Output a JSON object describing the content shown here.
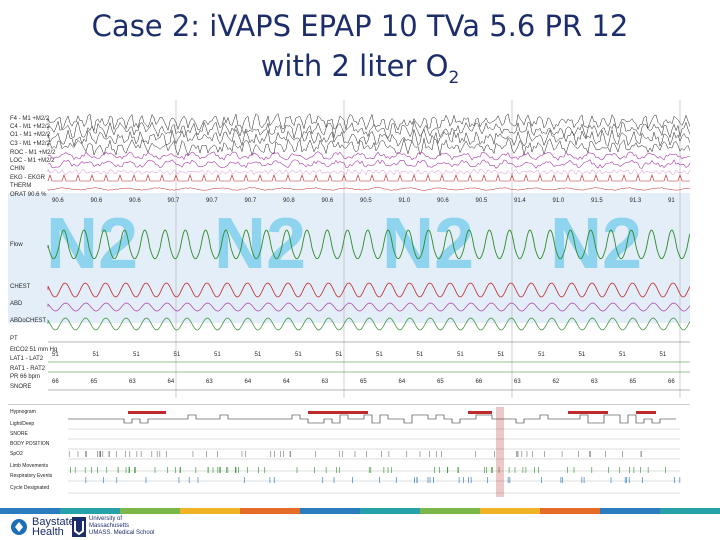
{
  "slide": {
    "title_line1": "Case 2: iVAPS EPAP 10 TVa 5.6 PR 12",
    "title_line2": "with 2 liter O",
    "title_sub": "2"
  },
  "psg": {
    "stage_labels": [
      "N2",
      "N2",
      "N2",
      "N2"
    ],
    "channels": [
      "F4 - M1 +M2/2",
      "C4 - M1 +M2/2",
      "O1 - M1 +M2/2",
      "C3 - M1 +M2/2",
      "ROC - M1 +M2/2",
      "LOC - M1 +M2/2",
      "CHIN",
      "EKG - EKGR",
      "THERM",
      "ORAT 90.6 %",
      "Flow",
      "CHEST",
      "ABD",
      "ABDoCHEST",
      "PT",
      "EtCO2 51 mm Hg",
      "LAT1 - LAT2",
      "RAT1 - RAT2",
      "PR 66 bpm",
      "SNORE"
    ],
    "spo2_values": [
      "90.6",
      "90.6",
      "90.6",
      "90.7",
      "90.7",
      "90.7",
      "90.8",
      "90.6",
      "90.5",
      "91.0",
      "90.6",
      "90.5",
      "91.4",
      "91.0",
      "91.5",
      "91.3",
      "91"
    ],
    "etco2_values": [
      "51",
      "51",
      "51",
      "51",
      "51",
      "51",
      "51",
      "51",
      "51",
      "51",
      "51",
      "51",
      "51",
      "51",
      "51",
      "51"
    ],
    "pr_values": [
      "66",
      "65",
      "63",
      "64",
      "63",
      "64",
      "64",
      "63",
      "65",
      "64",
      "65",
      "66",
      "63",
      "62",
      "63",
      "65",
      "66"
    ]
  },
  "hypnogram": {
    "labels": [
      "Hypnogram",
      "Light/Deep",
      "SNORE",
      "BODY POSITION",
      "SpO2",
      "Limb Movements",
      "Respiratory Events",
      "Cycle Designated"
    ]
  },
  "footer": {
    "left_logo_line1": "Baystate",
    "left_logo_line2": "Health",
    "right_logo_line1": "University of",
    "right_logo_line2": "Massachusetts",
    "right_logo_line3": "UMASS. Medical School"
  },
  "colors": {
    "title": "#1c2d6b",
    "eeg": "#222222",
    "eog": "#a83aa8",
    "ekg": "#c0282a",
    "flow": "#2d8b2d",
    "chest": "#c0282a",
    "stage_label": "#8ed4ef",
    "spo2_bg": "#e3eef8"
  }
}
